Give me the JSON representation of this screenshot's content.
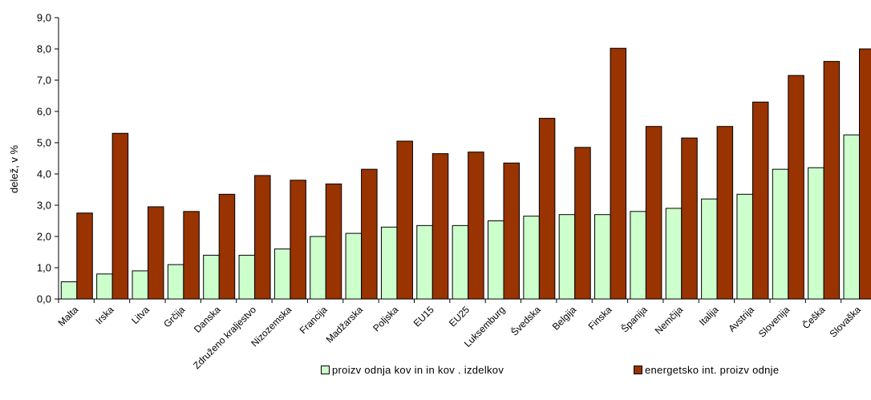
{
  "chart_data": {
    "type": "bar",
    "ylabel": "delež, v %",
    "ylim": [
      0,
      9
    ],
    "ytick_step": 1,
    "ytick_labels": [
      "0,0",
      "1,0",
      "2,0",
      "3,0",
      "4,0",
      "5,0",
      "6,0",
      "7,0",
      "8,0",
      "9,0"
    ],
    "grid": false,
    "legend_position": "bottom",
    "categories": [
      "Malta",
      "Irska",
      "Litva",
      "Grčija",
      "Danska",
      "Združeno kraljestvo",
      "Nizozemska",
      "Francija",
      "Madžarska",
      "Poljska",
      "EU15",
      "EU25",
      "Luksemburg",
      "Švedska",
      "Belgija",
      "Finska",
      "Španija",
      "Nemčija",
      "Italija",
      "Avstrija",
      "Slovenija",
      "Češka",
      "Slovaška"
    ],
    "series": [
      {
        "name": "proizv odnja kov in in kov . izdelkov",
        "color": "#ccffcc",
        "values": [
          0.55,
          0.8,
          0.9,
          1.1,
          1.4,
          1.4,
          1.6,
          2.0,
          2.1,
          2.3,
          2.35,
          2.35,
          2.5,
          2.65,
          2.7,
          2.7,
          2.8,
          2.9,
          3.2,
          3.35,
          4.15,
          4.2,
          5.25
        ]
      },
      {
        "name": "energetsko int. proizv odnje",
        "color": "#993300",
        "values": [
          2.75,
          5.3,
          2.95,
          2.8,
          3.35,
          3.95,
          3.8,
          3.68,
          4.15,
          5.05,
          4.65,
          4.7,
          4.35,
          5.78,
          4.85,
          8.02,
          5.52,
          5.15,
          5.52,
          6.3,
          7.15,
          7.6,
          8.0
        ]
      }
    ]
  }
}
